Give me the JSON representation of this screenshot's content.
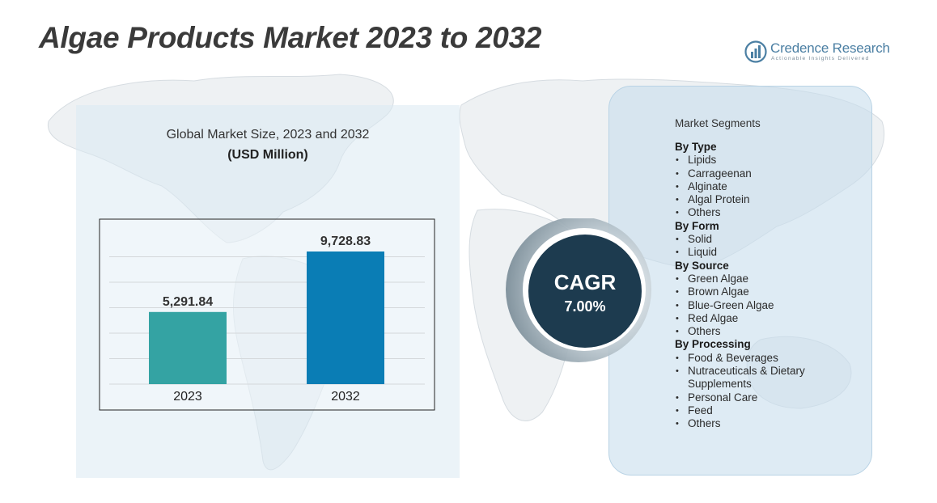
{
  "page": {
    "title": "Algae Products Market 2023 to 2032"
  },
  "logo": {
    "name": "Credence Research",
    "tagline": "Actionable Insights Delivered",
    "icon": "bar-chart-circle-icon"
  },
  "chart_data": {
    "type": "bar",
    "title": "Global Market Size, 2023 and 2032",
    "subtitle": "(USD Million)",
    "categories": [
      "2023",
      "2032"
    ],
    "values": [
      5291.84,
      9728.83
    ],
    "value_labels": [
      "5,291.84",
      "9,728.83"
    ],
    "colors": [
      "#34a3a3",
      "#0a7db5"
    ],
    "ylim": [
      0,
      10500
    ],
    "grid": true,
    "legend": "none"
  },
  "cagr": {
    "label": "CAGR",
    "value": "7.00%"
  },
  "segments": {
    "heading": "Market Segments",
    "groups": [
      {
        "title": "By Type",
        "items": [
          "Lipids",
          "Carrageenan",
          "Alginate",
          "Algal Protein",
          "Others"
        ]
      },
      {
        "title": "By Form",
        "items": [
          "Solid",
          "Liquid"
        ]
      },
      {
        "title": "By Source",
        "items": [
          "Green Algae",
          "Brown Algae",
          "Blue-Green Algae",
          "Red Algae",
          "Others"
        ]
      },
      {
        "title": "By Processing",
        "items": [
          "Food & Beverages",
          "Nutraceuticals & Dietary Supplements",
          "Personal Care",
          "Feed",
          "Others"
        ]
      }
    ]
  },
  "colors": {
    "cagr_circle": "#1d3b4f",
    "panel_left": "#dae9f3",
    "panel_right": "#c8deec",
    "title_text": "#3a3a3a"
  }
}
